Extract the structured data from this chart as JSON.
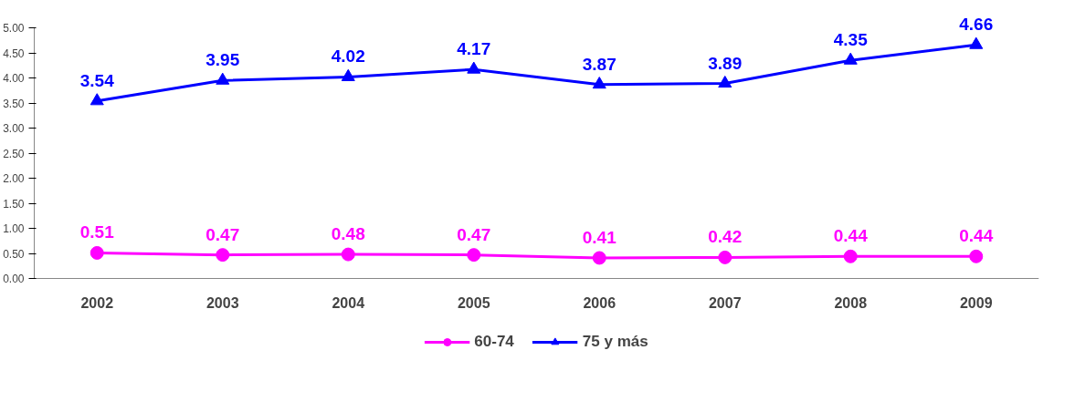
{
  "chart_data": {
    "type": "line",
    "categories": [
      "2002",
      "2003",
      "2004",
      "2005",
      "2006",
      "2007",
      "2008",
      "2009"
    ],
    "series": [
      {
        "name": "60-74",
        "color": "#ff00ff",
        "marker": "circle",
        "values": [
          0.51,
          0.47,
          0.48,
          0.47,
          0.41,
          0.42,
          0.44,
          0.44
        ]
      },
      {
        "name": "75 y más",
        "color": "#0000ff",
        "marker": "triangle",
        "values": [
          3.54,
          3.95,
          4.02,
          4.17,
          3.87,
          3.89,
          4.35,
          4.66
        ]
      }
    ],
    "ylim": [
      0,
      5
    ],
    "yticks": [
      {
        "value": 0,
        "label": "0.00"
      },
      {
        "value": 0.5,
        "label": "0.50"
      },
      {
        "value": 1,
        "label": "1.00"
      },
      {
        "value": 1.5,
        "label": "1.50"
      },
      {
        "value": 2,
        "label": "2.00"
      },
      {
        "value": 2.5,
        "label": "2.50"
      },
      {
        "value": 3,
        "label": "3.00"
      },
      {
        "value": 3.5,
        "label": "3.50"
      },
      {
        "value": 4,
        "label": "4.00"
      },
      {
        "value": 4.5,
        "label": "4.50"
      },
      {
        "value": 5,
        "label": "5.00"
      }
    ],
    "grid": false,
    "legend": "bottom",
    "data_labels": true,
    "line_style": "solid"
  }
}
